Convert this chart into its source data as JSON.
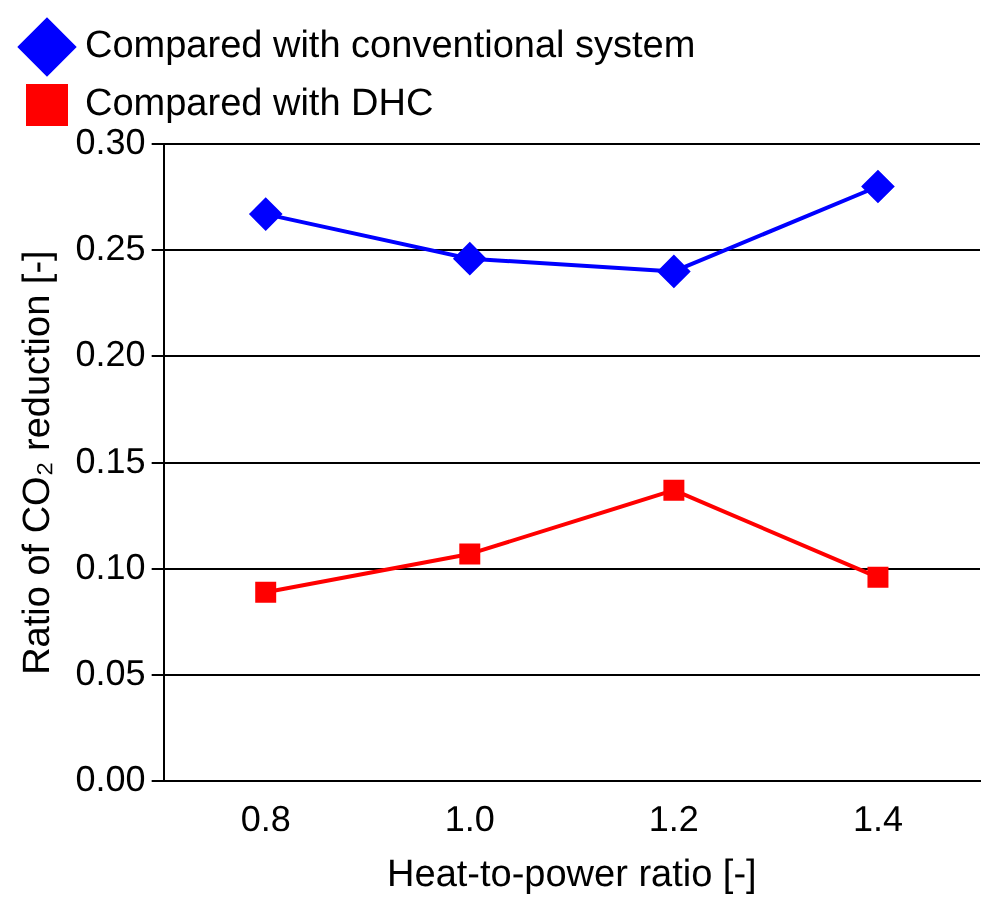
{
  "chart_data": {
    "type": "line",
    "xlabel": "Heat-to-power ratio [-]",
    "ylabel": "Ratio of CO₂ reduction [-]",
    "categories": [
      "0.8",
      "1.0",
      "1.2",
      "1.4"
    ],
    "series": [
      {
        "name": "Compared with conventional system",
        "color": "#0000ff",
        "marker": "diamond",
        "values": [
          0.267,
          0.246,
          0.24,
          0.28
        ]
      },
      {
        "name": "Compared with DHC",
        "color": "#ff0000",
        "marker": "square",
        "values": [
          0.089,
          0.107,
          0.137,
          0.096
        ]
      }
    ],
    "ylim": [
      0,
      0.3
    ],
    "yticks": [
      {
        "value": 0,
        "label": "0.00"
      },
      {
        "value": 0.05,
        "label": "0.05"
      },
      {
        "value": 0.1,
        "label": "0.10"
      },
      {
        "value": 0.15,
        "label": "0.15"
      },
      {
        "value": 0.2,
        "label": "0.20"
      },
      {
        "value": 0.25,
        "label": "0.25"
      },
      {
        "value": 0.3,
        "label": "0.30"
      }
    ],
    "grid": "y",
    "legend": "top",
    "line_style": "solid"
  }
}
